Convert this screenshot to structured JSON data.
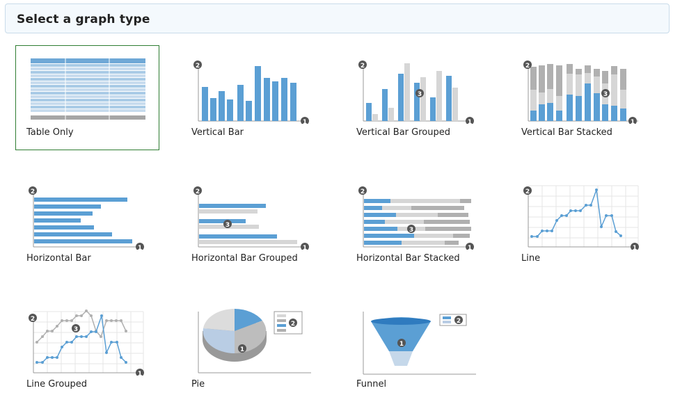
{
  "header": {
    "title": "Select a graph type"
  },
  "colors": {
    "blue": "#5b9fd4",
    "light_gray": "#d6d6d6",
    "mid_gray": "#b0b0b0",
    "selected_border": "#2e7d32"
  },
  "tiles": [
    {
      "id": "table-only",
      "label": "Table Only",
      "selected": true
    },
    {
      "id": "vertical-bar",
      "label": "Vertical Bar",
      "selected": false
    },
    {
      "id": "vertical-bar-grouped",
      "label": "Vertical Bar Grouped",
      "selected": false
    },
    {
      "id": "vertical-bar-stacked",
      "label": "Vertical Bar Stacked",
      "selected": false
    },
    {
      "id": "horizontal-bar",
      "label": "Horizontal Bar",
      "selected": false
    },
    {
      "id": "horizontal-bar-grouped",
      "label": "Horizontal Bar Grouped",
      "selected": false
    },
    {
      "id": "horizontal-bar-stacked",
      "label": "Horizontal Bar Stacked",
      "selected": false
    },
    {
      "id": "line",
      "label": "Line",
      "selected": false
    },
    {
      "id": "line-grouped",
      "label": "Line Grouped",
      "selected": false
    },
    {
      "id": "pie",
      "label": "Pie",
      "selected": false
    },
    {
      "id": "funnel",
      "label": "Funnel",
      "selected": false
    }
  ],
  "badges": {
    "one": "1",
    "two": "2",
    "three": "3"
  }
}
